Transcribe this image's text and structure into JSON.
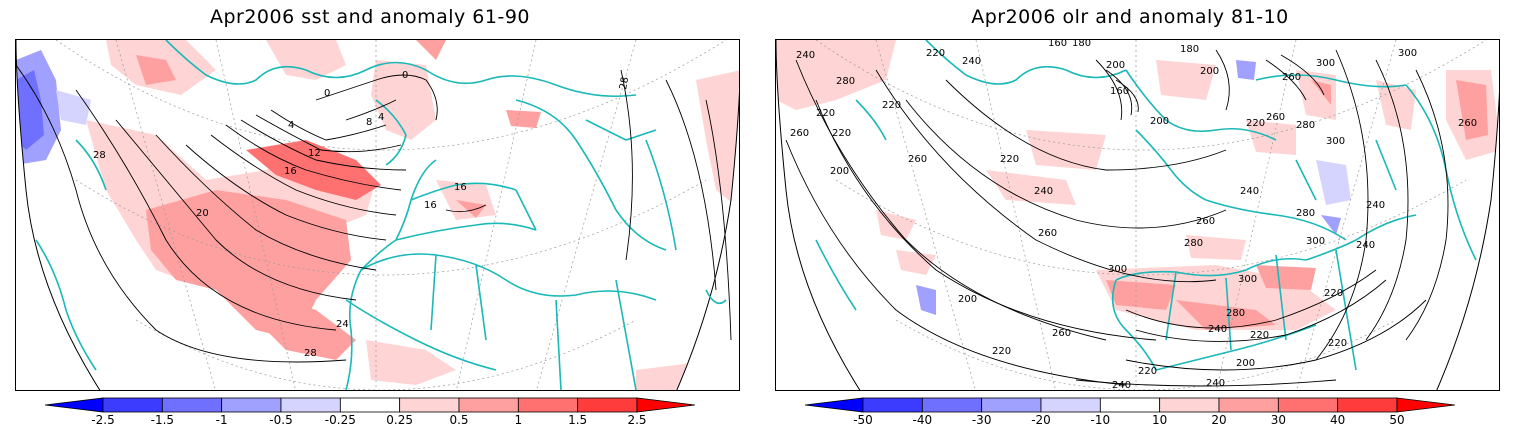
{
  "panels": [
    {
      "title": "Apr2006 sst and anomaly 61-90",
      "variable": "sst",
      "contour_labels": [
        "0",
        "0",
        "4",
        "8",
        "4",
        "12",
        "16",
        "16",
        "16",
        "20",
        "24",
        "28",
        "28",
        "28"
      ],
      "colorbar": {
        "labels": [
          "-2.5",
          "-1.5",
          "-1",
          "-0.5",
          "-0.25",
          "0.25",
          "0.5",
          "1",
          "1.5",
          "2.5"
        ],
        "colors": [
          "#0000ff",
          "#3c3cff",
          "#7070ff",
          "#a0a0ff",
          "#d4d4ff",
          "#ffffff",
          "#ffd4d4",
          "#ffa0a0",
          "#ff7070",
          "#ff3c3c",
          "#ff0000"
        ]
      }
    },
    {
      "title": "Apr2006 olr and anomaly 81-10",
      "variable": "olr",
      "contour_labels": [
        "240",
        "280",
        "220",
        "240",
        "160",
        "180",
        "180",
        "200",
        "160",
        "200",
        "220",
        "260",
        "220",
        "220",
        "260",
        "200",
        "200",
        "220",
        "220",
        "240",
        "300",
        "260",
        "240",
        "260",
        "280",
        "300",
        "280",
        "260",
        "240",
        "280",
        "300",
        "300",
        "300",
        "260",
        "240",
        "220",
        "200",
        "220",
        "260",
        "240",
        "220",
        "240",
        "280",
        "200",
        "220",
        "240",
        "260",
        "300",
        "220"
      ],
      "colorbar": {
        "labels": [
          "-50",
          "-40",
          "-30",
          "-20",
          "-10",
          "10",
          "20",
          "30",
          "40",
          "50"
        ],
        "colors": [
          "#0000ff",
          "#3c3cff",
          "#7070ff",
          "#a0a0ff",
          "#d4d4ff",
          "#ffffff",
          "#ffd4d4",
          "#ffa0a0",
          "#ff7070",
          "#ff3c3c",
          "#ff0000"
        ]
      }
    }
  ],
  "colors": {
    "coastline": "#1ab8b8",
    "contour": "#000000",
    "grid": "#999999",
    "frame": "#000000"
  }
}
